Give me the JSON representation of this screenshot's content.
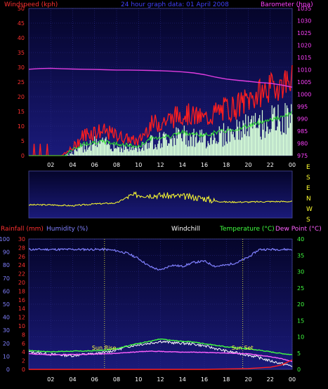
{
  "colors": {
    "plot_bg_top": "#05052a",
    "plot_bg_bottom": "#1a1a7a",
    "wind_avg": "#ff1e1e",
    "wind_gust": "#ffffff",
    "barometer": "#e03ce0",
    "direction": "#ffff30",
    "humidity": "#8080ff",
    "windchill": "#ffffff",
    "temperature": "#40ff40",
    "dewpoint": "#ff60ff",
    "rainfall": "#ff1e1e",
    "axis_red": "#ff3030",
    "axis_magenta": "#ff40ff",
    "axis_green": "#40ff40",
    "axis_blue": "#8080ff",
    "title_blue": "#4040ff",
    "sun_label": "#ffff40"
  },
  "chart_data": [
    {
      "type": "line",
      "title": "24 hour graph data: 01 April 2008",
      "y1label": "Windspeed (kph)",
      "y2label": "Barometer (hpa)",
      "x_ticks": [
        "02",
        "04",
        "06",
        "08",
        "10",
        "12",
        "14",
        "16",
        "18",
        "20",
        "22",
        "00"
      ],
      "y1_ticks": [
        "0",
        "5",
        "10",
        "15",
        "20",
        "25",
        "30",
        "35",
        "40",
        "45",
        "50"
      ],
      "y1lim": [
        0,
        50
      ],
      "y2_ticks": [
        "975",
        "980",
        "985",
        "990",
        "995",
        "1000",
        "1005",
        "1010",
        "1015",
        "1020",
        "1025",
        "1030",
        "1035"
      ],
      "y2lim": [
        975,
        1035
      ],
      "series": [
        {
          "key": "barometer",
          "axis": "y2",
          "x": [
            0,
            1,
            2,
            3,
            4,
            5,
            6,
            7,
            8,
            9,
            10,
            11,
            12,
            13,
            14,
            15,
            16,
            17,
            18,
            19,
            20,
            21,
            22,
            23,
            24
          ],
          "values": [
            1010.2,
            1010.5,
            1010.6,
            1010.4,
            1010.3,
            1010.2,
            1010.1,
            1010,
            1009.9,
            1009.9,
            1009.8,
            1009.7,
            1009.6,
            1009.4,
            1009.1,
            1008.7,
            1008,
            1007,
            1006.2,
            1005.7,
            1005.3,
            1004.8,
            1004.5,
            1003.8,
            1002.9
          ]
        },
        {
          "key": "wind_avg",
          "axis": "y1",
          "x": [
            0,
            1,
            2,
            3,
            4,
            5,
            6,
            7,
            8,
            9,
            10,
            11,
            12,
            13,
            14,
            15,
            16,
            17,
            18,
            19,
            20,
            21,
            22,
            23,
            24
          ],
          "values": [
            0,
            0,
            0,
            0,
            2,
            6,
            7,
            7,
            6,
            5,
            4,
            9,
            10,
            11,
            13,
            12,
            11,
            13,
            14,
            15,
            17,
            19,
            21,
            22,
            25
          ]
        },
        {
          "key": "wind_gust",
          "axis": "y1",
          "x": [
            0,
            1,
            2,
            3,
            4,
            5,
            6,
            7,
            8,
            9,
            10,
            11,
            12,
            13,
            14,
            15,
            16,
            17,
            18,
            19,
            20,
            21,
            22,
            23,
            24
          ],
          "values": [
            0,
            0,
            0,
            0,
            5,
            12,
            14,
            13,
            11,
            9,
            8,
            16,
            18,
            19,
            22,
            20,
            19,
            22,
            24,
            25,
            28,
            30,
            32,
            34,
            35
          ]
        },
        {
          "key": "wind_min",
          "axis": "y1",
          "x": [
            0,
            1,
            2,
            3,
            4,
            5,
            6,
            7,
            8,
            9,
            10,
            11,
            12,
            13,
            14,
            15,
            16,
            17,
            18,
            19,
            20,
            21,
            22,
            23,
            24
          ],
          "values": [
            0,
            0,
            0,
            0,
            0,
            1,
            2,
            2,
            1,
            1,
            1,
            2,
            2,
            3,
            3,
            3,
            2,
            3,
            3,
            4,
            5,
            5,
            6,
            6,
            7
          ]
        }
      ]
    },
    {
      "type": "line",
      "title": "",
      "y_compass": [
        "E",
        "S",
        "E",
        "N",
        "W",
        "S"
      ],
      "x_ticks": [],
      "series": [
        {
          "key": "direction",
          "x": [
            0,
            2,
            4,
            6,
            8,
            9,
            10,
            12,
            14,
            16,
            17,
            18,
            20,
            22,
            24
          ],
          "values": [
            0.28,
            0.28,
            0.26,
            0.3,
            0.32,
            0.45,
            0.5,
            0.48,
            0.46,
            0.42,
            0.36,
            0.34,
            0.34,
            0.35,
            0.35
          ]
        }
      ]
    },
    {
      "type": "line",
      "y1label": "Rainfall (mm)",
      "y1blabel": "Humidity (%)",
      "windchill_label": "Windchill",
      "y2label": "Temperature (°C)",
      "y2blabel": "Dew Point (°C)",
      "x_ticks": [
        "02",
        "04",
        "06",
        "08",
        "10",
        "12",
        "14",
        "16",
        "18",
        "20",
        "22",
        "00"
      ],
      "rain_ticks": [
        "0",
        "2",
        "4",
        "6",
        "8",
        "10",
        "12",
        "14",
        "16",
        "18",
        "20",
        "22",
        "24",
        "26",
        "28",
        "30"
      ],
      "humidity_ticks": [
        "0",
        "10",
        "20",
        "30",
        "40",
        "50",
        "60",
        "70",
        "80",
        "90",
        "100"
      ],
      "temp_ticks": [
        "0",
        "5",
        "10",
        "15",
        "20",
        "25",
        "30",
        "35",
        "40"
      ],
      "templim": [
        0,
        40
      ],
      "humlim": [
        0,
        100
      ],
      "rainlim": [
        0,
        30
      ],
      "sun_rise": "Sun Rise",
      "sun_set": "Sun Set",
      "sun_rise_x": 6.9,
      "sun_set_x": 19.5,
      "series": [
        {
          "key": "humidity",
          "axis": "hum",
          "x": [
            0,
            1,
            2,
            3,
            4,
            5,
            6,
            7,
            8,
            9,
            10,
            11,
            12,
            13,
            14,
            15,
            16,
            17,
            18,
            19,
            20,
            21,
            22,
            23,
            24
          ],
          "values": [
            92,
            92,
            92,
            92,
            92,
            92,
            92,
            92,
            91,
            89,
            85,
            79,
            76,
            80,
            79,
            82,
            83,
            79,
            80,
            82,
            86,
            92,
            92,
            92,
            92
          ]
        },
        {
          "key": "temperature",
          "axis": "temp",
          "x": [
            0,
            1,
            2,
            3,
            4,
            5,
            6,
            7,
            8,
            9,
            10,
            11,
            12,
            13,
            14,
            15,
            16,
            17,
            18,
            19,
            20,
            21,
            22,
            23,
            24
          ],
          "values": [
            5.8,
            5.6,
            5.4,
            5.5,
            5.6,
            5.6,
            5.7,
            5.9,
            6.4,
            7.2,
            8.0,
            8.6,
            9.3,
            8.9,
            8.6,
            8.4,
            7.9,
            7.4,
            6.9,
            6.6,
            6.3,
            5.9,
            5.4,
            4.9,
            4.5
          ]
        },
        {
          "key": "windchill",
          "axis": "temp",
          "x": [
            0,
            1,
            2,
            3,
            4,
            5,
            6,
            7,
            8,
            9,
            10,
            11,
            12,
            13,
            14,
            15,
            16,
            17,
            18,
            19,
            20,
            21,
            22,
            23,
            24
          ],
          "values": [
            5.4,
            5.0,
            4.6,
            4.4,
            4.2,
            4.6,
            4.8,
            5.2,
            6.0,
            7.0,
            7.6,
            8.0,
            8.6,
            8.2,
            8.0,
            7.8,
            7.2,
            6.4,
            5.6,
            5.0,
            4.4,
            3.6,
            2.6,
            1.8,
            1.0
          ]
        },
        {
          "key": "dewpoint",
          "axis": "temp",
          "x": [
            0,
            1,
            2,
            3,
            4,
            5,
            6,
            7,
            8,
            9,
            10,
            11,
            12,
            13,
            14,
            15,
            16,
            17,
            18,
            19,
            20,
            21,
            22,
            23,
            24
          ],
          "values": [
            4.8,
            4.6,
            4.5,
            4.5,
            4.6,
            4.6,
            4.7,
            4.8,
            4.9,
            5.2,
            5.4,
            5.6,
            5.5,
            5.4,
            5.3,
            5.3,
            5.2,
            5.1,
            5.0,
            4.9,
            4.8,
            4.3,
            3.9,
            3.3,
            2.4
          ]
        },
        {
          "key": "rainfall",
          "axis": "rain",
          "x": [
            0,
            4,
            8,
            12,
            16,
            20,
            22,
            23,
            23.5,
            24
          ],
          "values": [
            0,
            0,
            0,
            0,
            0,
            0.2,
            0.5,
            1.0,
            1.6,
            2.2
          ]
        }
      ]
    }
  ]
}
